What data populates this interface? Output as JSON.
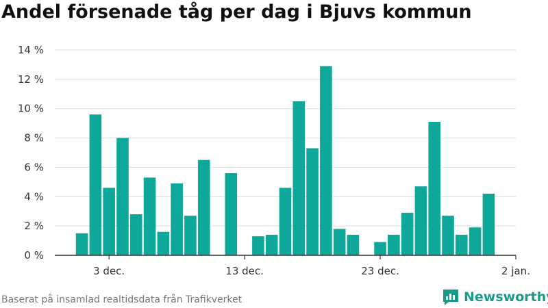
{
  "title": "Andel försenade tåg per dag i Bjuvs kommun",
  "source": "Baserat på insamlad realtidsdata från Trafikverket",
  "brand": {
    "name": "Newsworthy",
    "icon": "newsworthy-logo-icon",
    "color": "#1a9a8a"
  },
  "colors": {
    "bar": "#0ea89b",
    "grid": "#dddddd",
    "axis": "#333333"
  },
  "chart_data": {
    "type": "bar",
    "title": "Andel försenade tåg per dag i Bjuvs kommun",
    "xlabel": "",
    "ylabel": "",
    "ylim": [
      0,
      14
    ],
    "grid": true,
    "yticks": [
      {
        "value": 0,
        "label": "0 %"
      },
      {
        "value": 2,
        "label": "2 %"
      },
      {
        "value": 4,
        "label": "4 %"
      },
      {
        "value": 6,
        "label": "6 %"
      },
      {
        "value": 8,
        "label": "8 %"
      },
      {
        "value": 10,
        "label": "10 %"
      },
      {
        "value": 12,
        "label": "12 %"
      },
      {
        "value": 14,
        "label": "14 %"
      }
    ],
    "xticks": [
      {
        "date": "2023-12-03",
        "label": "3 dec."
      },
      {
        "date": "2023-12-13",
        "label": "13 dec."
      },
      {
        "date": "2023-12-23",
        "label": "23 dec."
      },
      {
        "date": "2024-01-02",
        "label": "2 jan."
      }
    ],
    "x_range": [
      "2023-11-29",
      "2024-01-02"
    ],
    "categories": [
      "2023-12-01",
      "2023-12-02",
      "2023-12-03",
      "2023-12-04",
      "2023-12-05",
      "2023-12-06",
      "2023-12-07",
      "2023-12-08",
      "2023-12-09",
      "2023-12-10",
      "2023-12-11",
      "2023-12-12",
      "2023-12-13",
      "2023-12-14",
      "2023-12-15",
      "2023-12-16",
      "2023-12-17",
      "2023-12-18",
      "2023-12-19",
      "2023-12-20",
      "2023-12-21",
      "2023-12-22",
      "2023-12-23",
      "2023-12-24",
      "2023-12-25",
      "2023-12-26",
      "2023-12-27",
      "2023-12-28",
      "2023-12-29",
      "2023-12-30",
      "2023-12-31",
      "2024-01-01"
    ],
    "values": [
      1.5,
      9.6,
      4.6,
      8.0,
      2.8,
      5.3,
      1.6,
      4.9,
      2.7,
      6.5,
      null,
      5.6,
      null,
      1.3,
      1.4,
      4.6,
      10.5,
      7.3,
      12.9,
      1.8,
      1.4,
      null,
      0.9,
      1.4,
      2.9,
      4.7,
      9.1,
      2.7,
      1.4,
      1.9,
      4.2,
      null
    ]
  }
}
